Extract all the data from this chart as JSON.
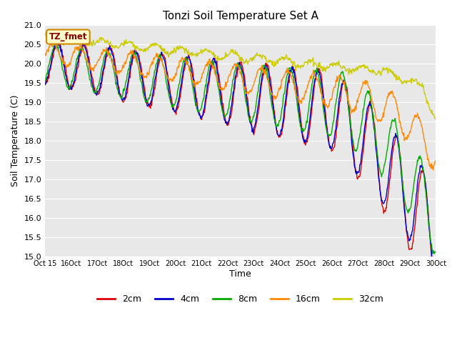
{
  "title": "Tonzi Soil Temperature Set A",
  "xlabel": "Time",
  "ylabel": "Soil Temperature (C)",
  "ylim": [
    15.0,
    21.0
  ],
  "yticks": [
    15.0,
    15.5,
    16.0,
    16.5,
    17.0,
    17.5,
    18.0,
    18.5,
    19.0,
    19.5,
    20.0,
    20.5,
    21.0
  ],
  "line_colors": [
    "#dd0000",
    "#0000cc",
    "#00aa00",
    "#ff8800",
    "#cccc00"
  ],
  "line_labels": [
    "2cm",
    "4cm",
    "8cm",
    "16cm",
    "32cm"
  ],
  "bg_color": "#e8e8e8",
  "fig_color": "#ffffff",
  "annotation_text": "TZ_fmet",
  "annotation_bg": "#ffffcc",
  "annotation_border": "#cc8800",
  "n_points": 720
}
